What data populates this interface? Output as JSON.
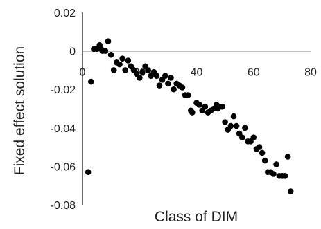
{
  "chart_data": {
    "type": "scatter",
    "title": "",
    "xlabel": "Class of DIM",
    "ylabel": "Fixed effect solution",
    "xlim": [
      0,
      80
    ],
    "ylim": [
      -0.08,
      0.02
    ],
    "xticks": [
      {
        "value": 0,
        "label": "0"
      },
      {
        "value": 20,
        "label": "20"
      },
      {
        "value": 40,
        "label": "40"
      },
      {
        "value": 60,
        "label": "60"
      },
      {
        "value": 80,
        "label": "80"
      }
    ],
    "yticks": [
      {
        "value": 0.02,
        "label": "0.02"
      },
      {
        "value": 0,
        "label": "0"
      },
      {
        "value": -0.02,
        "label": "-0.02"
      },
      {
        "value": -0.04,
        "label": "-0.04"
      },
      {
        "value": -0.06,
        "label": "-0.06"
      },
      {
        "value": -0.08,
        "label": "-0.08"
      }
    ],
    "grid": false,
    "legend": "none",
    "colors": {
      "points": "#000000",
      "axes": "#000000"
    },
    "series": [
      {
        "points": [
          [
            2,
            -0.063
          ],
          [
            3,
            -0.016
          ],
          [
            4,
            0.001
          ],
          [
            5,
            0.001
          ],
          [
            6,
            0.003
          ],
          [
            6.5,
            0.001
          ],
          [
            7,
            0.0
          ],
          [
            8,
            0.0
          ],
          [
            9,
            0.005
          ],
          [
            10,
            -0.002
          ],
          [
            11,
            -0.01
          ],
          [
            12,
            -0.006
          ],
          [
            13,
            -0.007
          ],
          [
            14,
            -0.004
          ],
          [
            15,
            -0.01
          ],
          [
            16,
            -0.005
          ],
          [
            17,
            -0.008
          ],
          [
            18,
            -0.01
          ],
          [
            19,
            -0.012
          ],
          [
            20,
            -0.014
          ],
          [
            21,
            -0.011
          ],
          [
            22,
            -0.008
          ],
          [
            23,
            -0.01
          ],
          [
            24,
            -0.013
          ],
          [
            25,
            -0.011
          ],
          [
            26,
            -0.013
          ],
          [
            27,
            -0.018
          ],
          [
            28,
            -0.015
          ],
          [
            29,
            -0.013
          ],
          [
            30,
            -0.017
          ],
          [
            31,
            -0.014
          ],
          [
            32,
            -0.02
          ],
          [
            33,
            -0.017
          ],
          [
            34,
            -0.018
          ],
          [
            35,
            -0.019
          ],
          [
            36,
            -0.023
          ],
          [
            37,
            -0.023
          ],
          [
            38,
            -0.031
          ],
          [
            38.5,
            -0.032
          ],
          [
            40,
            -0.027
          ],
          [
            41,
            -0.028
          ],
          [
            42,
            -0.031
          ],
          [
            43,
            -0.029
          ],
          [
            44,
            -0.032
          ],
          [
            45,
            -0.031
          ],
          [
            46,
            -0.03
          ],
          [
            47,
            -0.028
          ],
          [
            47.5,
            -0.03
          ],
          [
            48,
            -0.029
          ],
          [
            49,
            -0.029
          ],
          [
            50,
            -0.037
          ],
          [
            51,
            -0.041
          ],
          [
            52,
            -0.039
          ],
          [
            53,
            -0.034
          ],
          [
            54,
            -0.039
          ],
          [
            55,
            -0.043
          ],
          [
            56,
            -0.045
          ],
          [
            57,
            -0.04
          ],
          [
            58,
            -0.047
          ],
          [
            59,
            -0.047
          ],
          [
            60,
            -0.045
          ],
          [
            61,
            -0.051
          ],
          [
            62,
            -0.05
          ],
          [
            63,
            -0.053
          ],
          [
            64,
            -0.057
          ],
          [
            65,
            -0.063
          ],
          [
            66,
            -0.063
          ],
          [
            67,
            -0.064
          ],
          [
            68,
            -0.059
          ],
          [
            69,
            -0.065
          ],
          [
            70,
            -0.065
          ],
          [
            71,
            -0.065
          ],
          [
            72,
            -0.055
          ],
          [
            73,
            -0.073
          ]
        ]
      }
    ]
  }
}
